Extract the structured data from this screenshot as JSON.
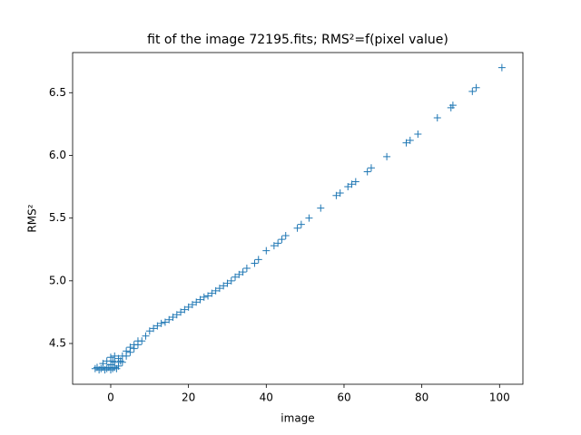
{
  "chart_data": {
    "type": "scatter",
    "title": "fit of the image 72195.fits; RMS²=f(pixel value)",
    "x_label": "image",
    "y_label": "RMS²",
    "marker": "+",
    "series": [
      {
        "color": "#1f77b4",
        "x": [
          -4,
          -3.5,
          -3,
          -2.5,
          -2,
          -1.5,
          -1,
          -0.5,
          0,
          0.5,
          1,
          1.5,
          2,
          -2,
          -1,
          0,
          0.5,
          1,
          0,
          1,
          2,
          2.5,
          3,
          3,
          4,
          4,
          5,
          5,
          6,
          6,
          7,
          7,
          8,
          9,
          10,
          11,
          12,
          13,
          14,
          15,
          16,
          17,
          18,
          19,
          20,
          21,
          22,
          23,
          24,
          25,
          26,
          27,
          28,
          29,
          30,
          31,
          32,
          33,
          34,
          35,
          37,
          38,
          40,
          42,
          43,
          44,
          45,
          48,
          49,
          51,
          54,
          58,
          59,
          61,
          62,
          63,
          66,
          67,
          71,
          76,
          77,
          79,
          84,
          87.5,
          88,
          93,
          94,
          100.6
        ],
        "y": [
          4.3,
          4.31,
          4.29,
          4.3,
          4.31,
          4.29,
          4.3,
          4.31,
          4.29,
          4.3,
          4.31,
          4.3,
          4.32,
          4.34,
          4.36,
          4.33,
          4.36,
          4.35,
          4.39,
          4.4,
          4.38,
          4.36,
          4.35,
          4.4,
          4.4,
          4.44,
          4.43,
          4.47,
          4.46,
          4.49,
          4.49,
          4.52,
          4.52,
          4.56,
          4.6,
          4.62,
          4.64,
          4.66,
          4.67,
          4.69,
          4.71,
          4.73,
          4.75,
          4.77,
          4.79,
          4.81,
          4.83,
          4.85,
          4.87,
          4.88,
          4.9,
          4.92,
          4.94,
          4.96,
          4.98,
          5.0,
          5.03,
          5.05,
          5.07,
          5.1,
          5.14,
          5.17,
          5.24,
          5.28,
          5.3,
          5.33,
          5.36,
          5.42,
          5.45,
          5.5,
          5.58,
          5.68,
          5.7,
          5.75,
          5.77,
          5.79,
          5.87,
          5.9,
          5.99,
          6.1,
          6.12,
          6.17,
          6.3,
          6.38,
          6.4,
          6.51,
          6.54,
          6.7
        ]
      }
    ],
    "xlim": [
      -9.8,
      106
    ],
    "ylim": [
      4.175,
      6.82
    ],
    "xticks": [
      0,
      20,
      40,
      60,
      80,
      100
    ],
    "yticks": [
      4.5,
      {
        "value": 5,
        "label": "5.0"
      },
      5.5,
      {
        "value": 6,
        "label": "6.0"
      },
      6.5
    ],
    "grid": false
  }
}
